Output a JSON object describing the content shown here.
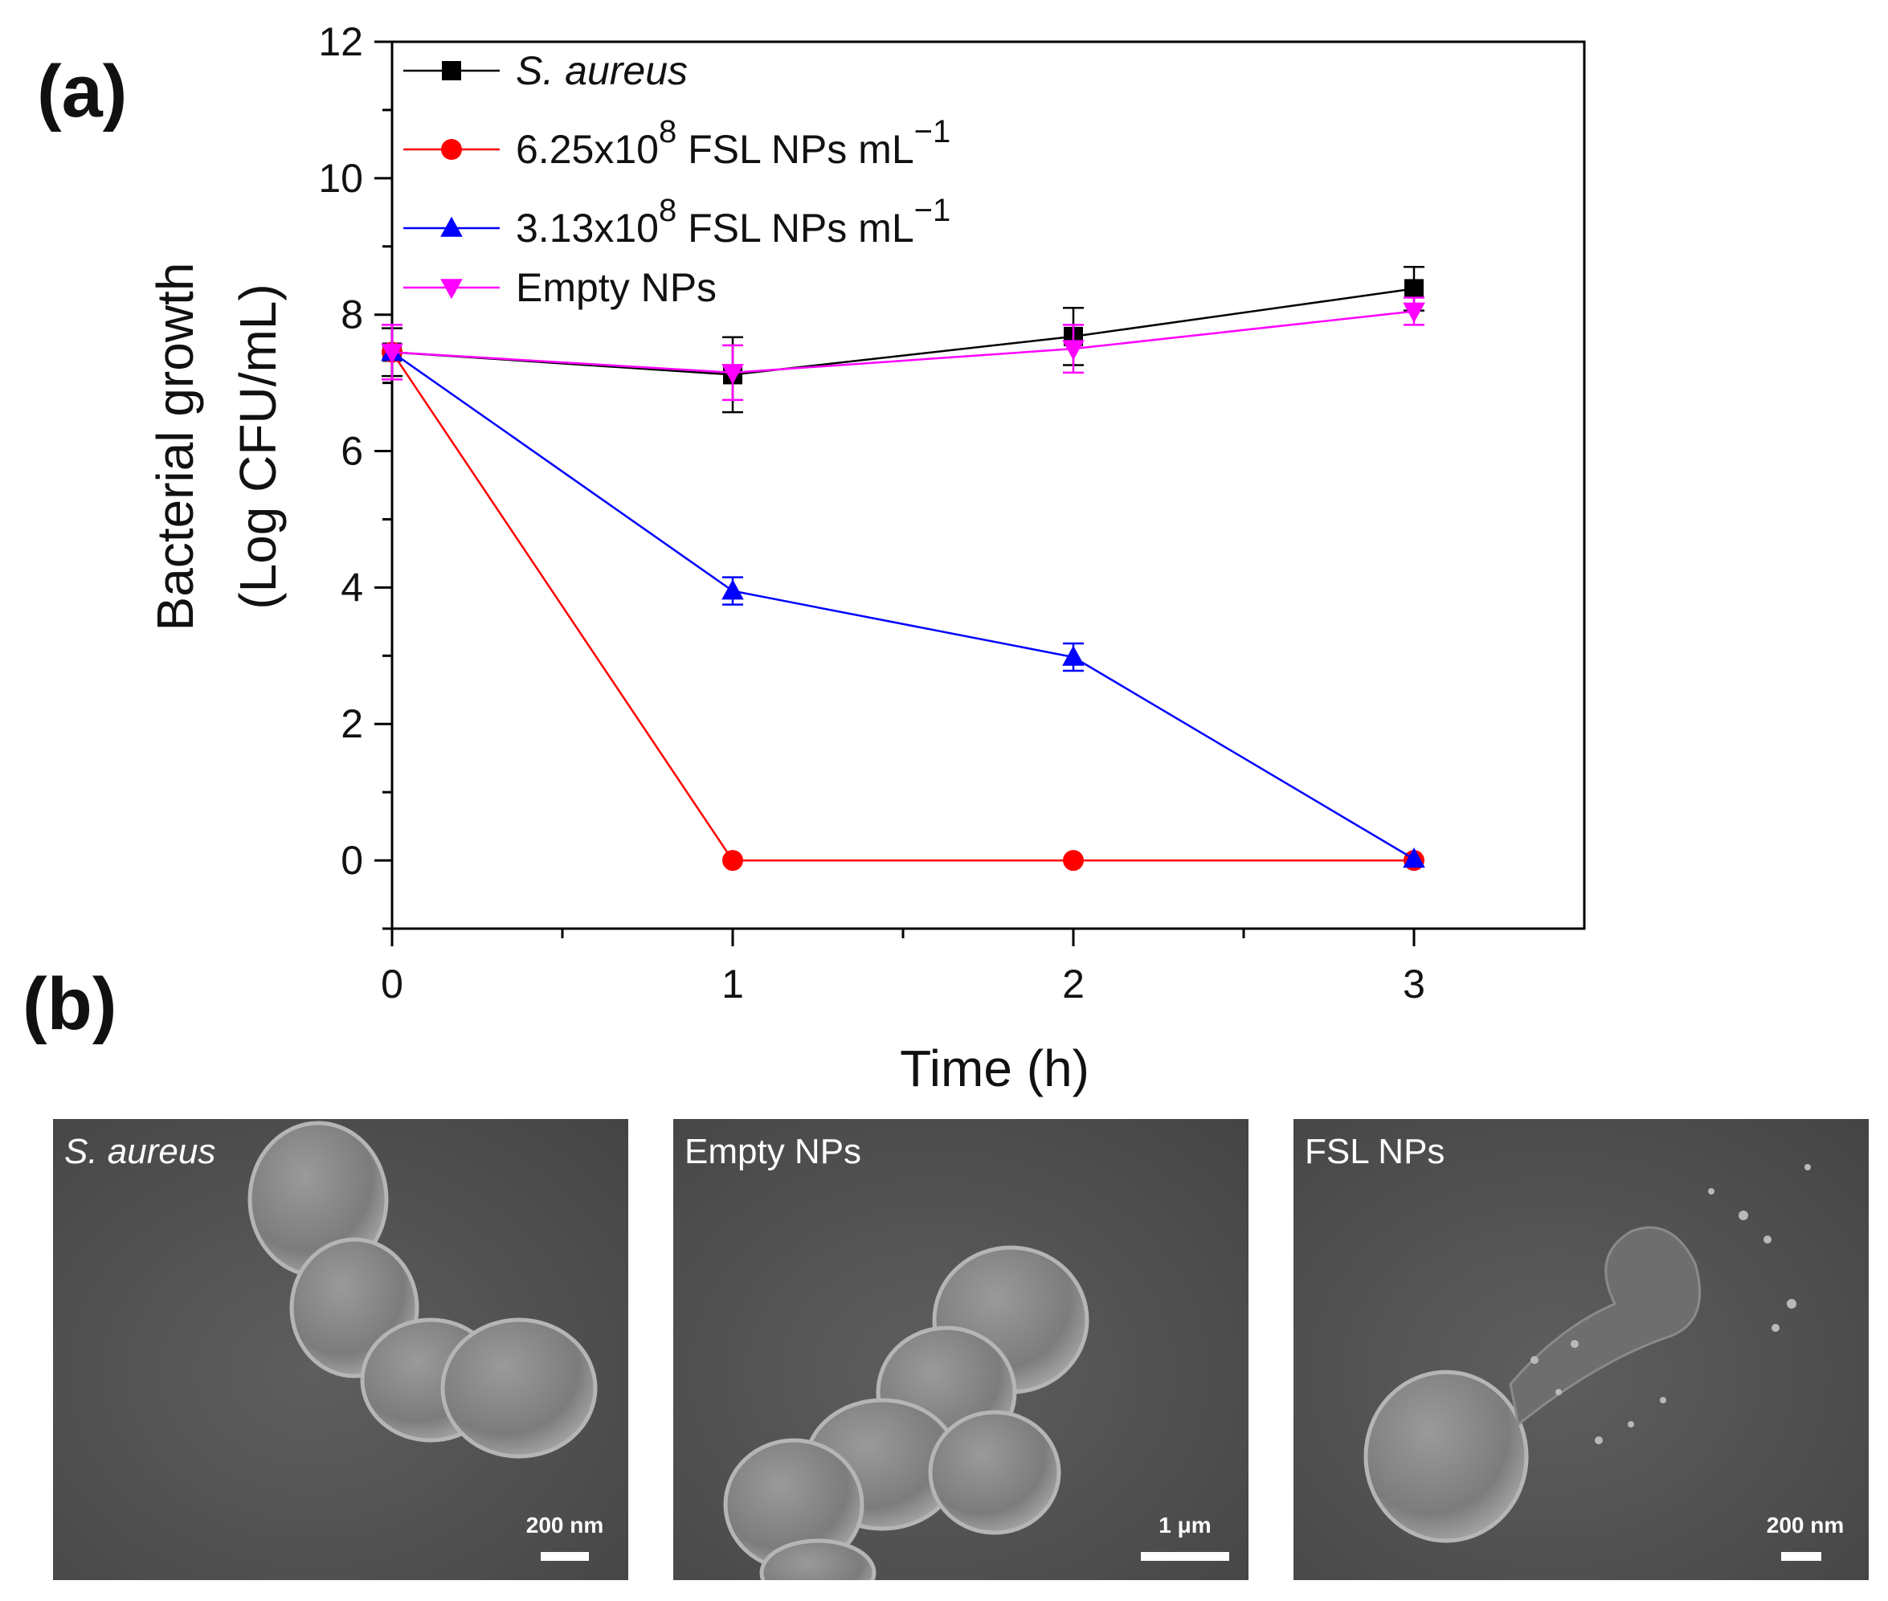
{
  "panels": {
    "a_label": "(a)",
    "b_label": "(b)"
  },
  "chart_data": {
    "type": "line",
    "xlabel": "Time (h)",
    "ylabel_line1": "Bacterial growth",
    "ylabel_line2": "(Log CFU/mL)",
    "xlim": [
      0,
      3.5
    ],
    "ylim": [
      -1,
      12
    ],
    "x_ticks": [
      0,
      1,
      2,
      3
    ],
    "y_ticks": [
      0,
      2,
      4,
      6,
      8,
      10,
      12
    ],
    "grid": false,
    "legend_position": "top-left",
    "x": [
      0,
      1,
      2,
      3
    ],
    "series": [
      {
        "name_main": "S. aureus",
        "name_sup": "",
        "name_tail": "",
        "name_sup2": "",
        "italic": true,
        "values": [
          7.45,
          7.12,
          7.68,
          8.38
        ],
        "errors": [
          0.35,
          0.55,
          0.42,
          0.32
        ],
        "color": "#000000",
        "marker": "square"
      },
      {
        "name_main": "6.25x10",
        "name_sup": "8",
        "name_tail": " FSL NPs mL",
        "name_sup2": "−1",
        "italic": false,
        "values": [
          7.45,
          0,
          0,
          0
        ],
        "errors": [
          0,
          0,
          0,
          0
        ],
        "color": "#ff0000",
        "marker": "circle"
      },
      {
        "name_main": "3.13x10",
        "name_sup": "8",
        "name_tail": " FSL NPs mL",
        "name_sup2": "−1",
        "italic": false,
        "values": [
          7.45,
          3.95,
          2.98,
          0.02
        ],
        "errors": [
          0,
          0.2,
          0.2,
          0
        ],
        "color": "#0000ff",
        "marker": "triangle-up"
      },
      {
        "name_main": "Empty NPs",
        "name_sup": "",
        "name_tail": "",
        "name_sup2": "",
        "italic": false,
        "values": [
          7.45,
          7.15,
          7.5,
          8.05
        ],
        "errors": [
          0.4,
          0.4,
          0.35,
          0.2
        ],
        "color": "#ff00ff",
        "marker": "triangle-down"
      }
    ]
  },
  "sem_images": [
    {
      "label": "S. aureus",
      "scale_label": "200 nm"
    },
    {
      "label": "Empty NPs",
      "scale_label": "1 μm"
    },
    {
      "label": "FSL NPs",
      "scale_label": "200 nm"
    }
  ]
}
